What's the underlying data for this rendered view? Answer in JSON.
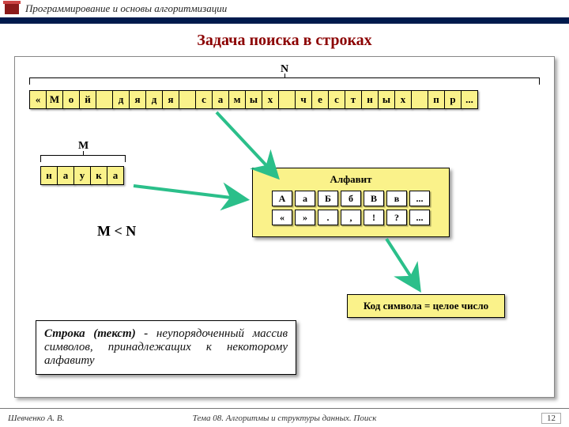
{
  "header": {
    "subject": "Программирование и основы алгоритмизации"
  },
  "title": "Задача поиска в строках",
  "labels": {
    "N": "N",
    "M": "M",
    "MltN": "M  <  N"
  },
  "stripN": [
    "«",
    "М",
    "о",
    "й",
    " ",
    "д",
    "я",
    "д",
    "я",
    " ",
    "с",
    "а",
    "м",
    "ы",
    "х",
    " ",
    "ч",
    "е",
    "с",
    "т",
    "н",
    "ы",
    "х",
    " ",
    "п",
    "р",
    "..."
  ],
  "stripM": [
    "н",
    "а",
    "у",
    "к",
    "а"
  ],
  "alphabet": {
    "title": "Алфавит",
    "row1": [
      "А",
      "а",
      "Б",
      "б",
      "В",
      "в",
      "..."
    ],
    "row2": [
      "«",
      "»",
      ".",
      ",",
      "!",
      "?",
      "..."
    ]
  },
  "codebox": "Код символа = целое число",
  "definition": {
    "lead": "Строка (текст) -",
    "rest": " неупорядоченный массив символов, принадлежащих к некоторому алфавиту"
  },
  "footer": {
    "author": "Шевченко А. В.",
    "topic": "Тема 08. Алгоритмы и структуры данных. Поиск",
    "page": "12"
  },
  "colors": {
    "accent": "#faf28a",
    "title": "#8b0000",
    "arrow": "#2bbf8a",
    "hdrbar": "#001a4d"
  }
}
